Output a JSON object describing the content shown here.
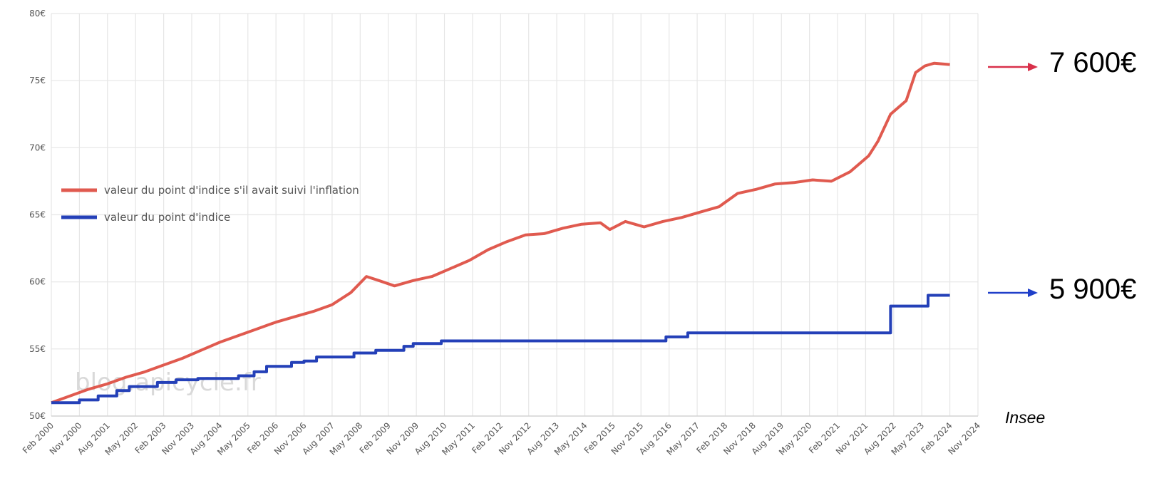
{
  "chart_data": {
    "type": "line",
    "ylim": [
      50,
      80
    ],
    "y_ticks": [
      "50€",
      "55€",
      "60€",
      "65€",
      "70€",
      "75€",
      "80€"
    ],
    "x_ticks": [
      "Feb 2000",
      "Nov 2000",
      "Aug 2001",
      "May 2002",
      "Feb 2003",
      "Nov 2003",
      "Aug 2004",
      "May 2005",
      "Feb 2006",
      "Nov 2006",
      "Aug 2007",
      "May 2008",
      "Feb 2009",
      "Nov 2009",
      "Aug 2010",
      "May 2011",
      "Feb 2012",
      "Nov 2012",
      "Aug 2013",
      "May 2014",
      "Feb 2015",
      "Nov 2015",
      "Aug 2016",
      "May 2017",
      "Feb 2018",
      "Nov 2018",
      "Aug 2019",
      "May 2020",
      "Feb 2021",
      "Nov 2021",
      "Aug 2022",
      "May 2023",
      "Feb 2024",
      "Nov 2024"
    ],
    "xlim": [
      "2000-02",
      "2024-11"
    ],
    "grid": true,
    "legend_position": "middle-left",
    "series": [
      {
        "name": "valeur du point d'indice s'il avait suivi l'inflation",
        "color": "#e05a4f",
        "points": [
          [
            "2000-02",
            51.0
          ],
          [
            "2000-08",
            51.5
          ],
          [
            "2001-02",
            52.0
          ],
          [
            "2001-08",
            52.4
          ],
          [
            "2002-02",
            52.9
          ],
          [
            "2002-08",
            53.3
          ],
          [
            "2003-02",
            53.8
          ],
          [
            "2003-08",
            54.3
          ],
          [
            "2004-02",
            54.9
          ],
          [
            "2004-08",
            55.5
          ],
          [
            "2005-02",
            56.0
          ],
          [
            "2005-08",
            56.5
          ],
          [
            "2006-02",
            57.0
          ],
          [
            "2006-08",
            57.4
          ],
          [
            "2007-02",
            57.8
          ],
          [
            "2007-08",
            58.3
          ],
          [
            "2008-02",
            59.2
          ],
          [
            "2008-07",
            60.4
          ],
          [
            "2008-11",
            60.1
          ],
          [
            "2009-04",
            59.7
          ],
          [
            "2009-10",
            60.1
          ],
          [
            "2010-04",
            60.4
          ],
          [
            "2010-10",
            61.0
          ],
          [
            "2011-04",
            61.6
          ],
          [
            "2011-10",
            62.4
          ],
          [
            "2012-04",
            63.0
          ],
          [
            "2012-10",
            63.5
          ],
          [
            "2013-04",
            63.6
          ],
          [
            "2013-10",
            64.0
          ],
          [
            "2014-04",
            64.3
          ],
          [
            "2014-10",
            64.4
          ],
          [
            "2015-01",
            63.9
          ],
          [
            "2015-06",
            64.5
          ],
          [
            "2015-12",
            64.1
          ],
          [
            "2016-06",
            64.5
          ],
          [
            "2016-12",
            64.8
          ],
          [
            "2017-06",
            65.2
          ],
          [
            "2017-12",
            65.6
          ],
          [
            "2018-06",
            66.6
          ],
          [
            "2018-12",
            66.9
          ],
          [
            "2019-06",
            67.3
          ],
          [
            "2019-12",
            67.4
          ],
          [
            "2020-06",
            67.6
          ],
          [
            "2020-12",
            67.5
          ],
          [
            "2021-06",
            68.2
          ],
          [
            "2021-12",
            69.4
          ],
          [
            "2022-03",
            70.5
          ],
          [
            "2022-07",
            72.5
          ],
          [
            "2022-12",
            73.5
          ],
          [
            "2023-03",
            75.6
          ],
          [
            "2023-06",
            76.1
          ],
          [
            "2023-09",
            76.3
          ],
          [
            "2024-02",
            76.2
          ]
        ]
      },
      {
        "name": "valeur du point d'indice",
        "color": "#2440b8",
        "step": true,
        "points": [
          [
            "2000-02",
            51.0
          ],
          [
            "2000-11",
            51.2
          ],
          [
            "2001-05",
            51.5
          ],
          [
            "2001-11",
            51.9
          ],
          [
            "2002-03",
            52.2
          ],
          [
            "2002-12",
            52.5
          ],
          [
            "2003-06",
            52.7
          ],
          [
            "2004-01",
            52.8
          ],
          [
            "2005-02",
            53.0
          ],
          [
            "2005-07",
            53.3
          ],
          [
            "2005-11",
            53.7
          ],
          [
            "2006-07",
            54.0
          ],
          [
            "2006-11",
            54.1
          ],
          [
            "2007-03",
            54.4
          ],
          [
            "2008-03",
            54.7
          ],
          [
            "2008-10",
            54.9
          ],
          [
            "2009-07",
            55.2
          ],
          [
            "2009-10",
            55.4
          ],
          [
            "2010-07",
            55.6
          ],
          [
            "2016-07",
            55.9
          ],
          [
            "2017-02",
            56.2
          ],
          [
            "2022-07",
            58.2
          ],
          [
            "2023-07",
            59.0
          ],
          [
            "2024-02",
            59.0
          ]
        ]
      }
    ],
    "watermark": "blog.apicycle.fr"
  },
  "annotations": {
    "red_value": "7 600€",
    "blue_value": "5 900€",
    "red_arrow_color": "#d9304a",
    "blue_arrow_color": "#1f3fc9",
    "source": "Insee"
  }
}
